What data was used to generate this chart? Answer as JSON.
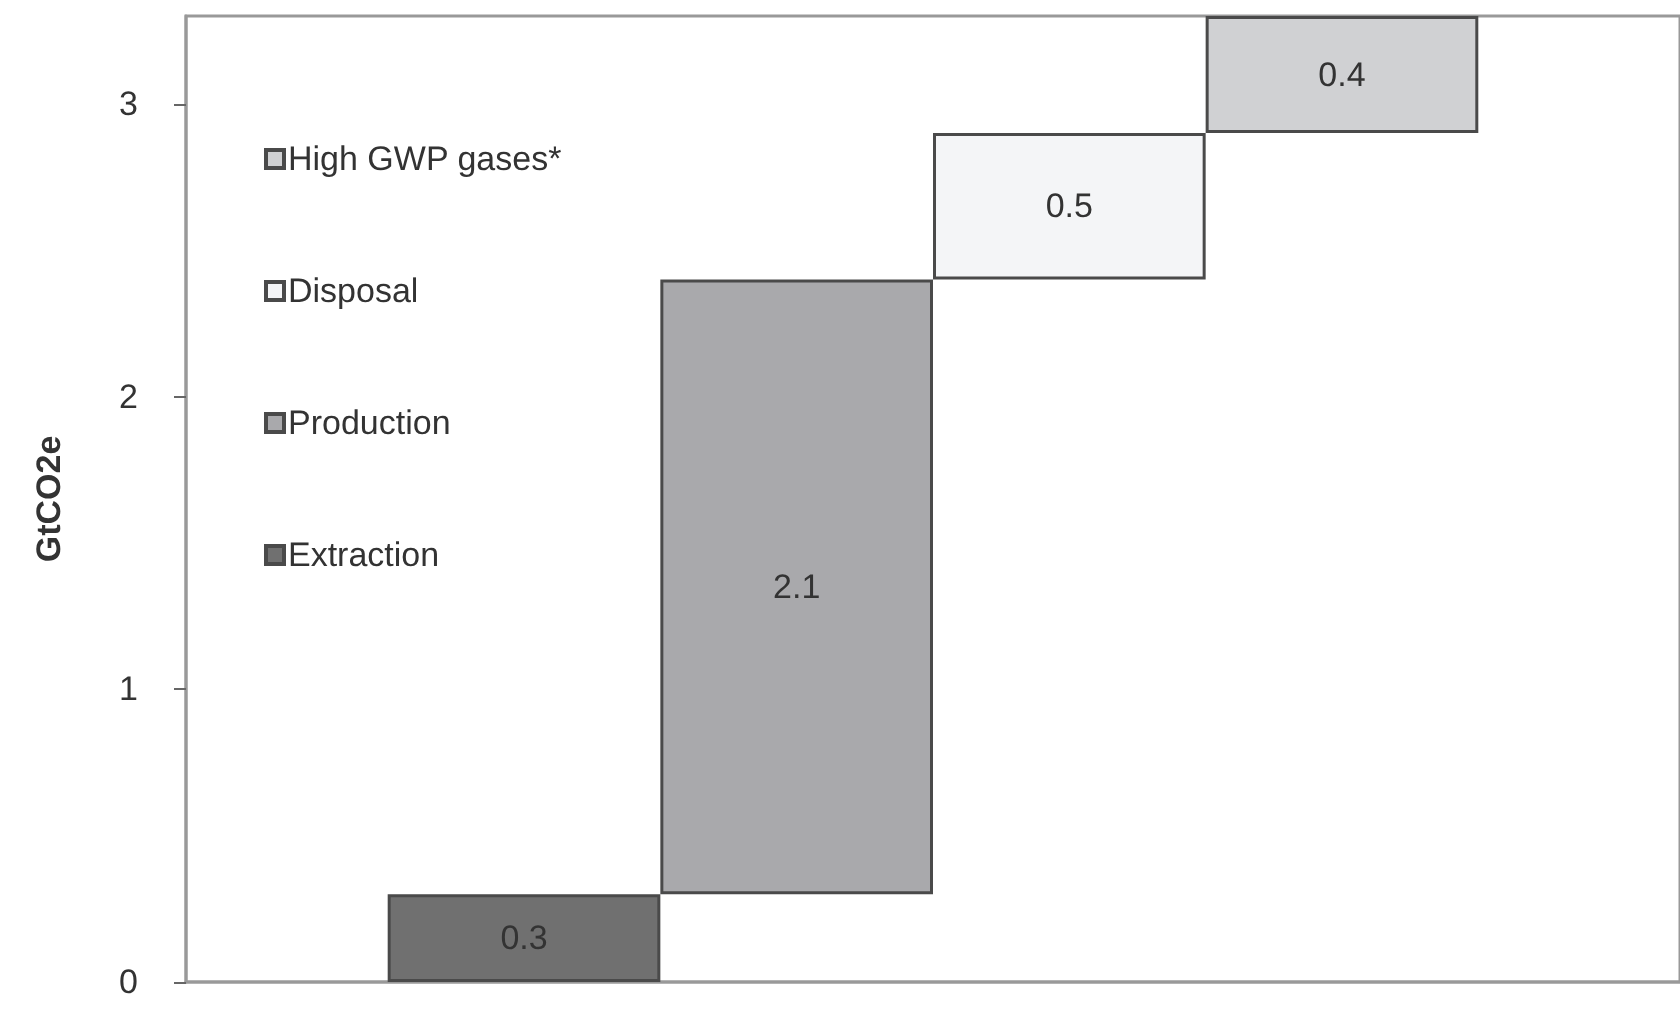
{
  "chart_data": {
    "type": "bar",
    "ylabel": "GtCO2e",
    "categories": [
      null
    ],
    "series": [
      {
        "name": "Extraction",
        "color": "#707070",
        "values": [
          0.3
        ],
        "base": [
          0
        ]
      },
      {
        "name": "Production",
        "color": "#a9a9ac",
        "values": [
          2.1
        ],
        "base": [
          0.3
        ]
      },
      {
        "name": "Disposal",
        "color": "#f4f5f7",
        "values": [
          0.5
        ],
        "base": [
          2.4
        ]
      },
      {
        "name": "High GWP gases*",
        "color": "#d0d1d3",
        "values": [
          0.4
        ],
        "base": [
          2.9
        ]
      }
    ],
    "ylim": [
      0,
      3.3
    ],
    "yticks": [
      0,
      1,
      2,
      3
    ],
    "data_labels": true,
    "legend": "top left"
  }
}
